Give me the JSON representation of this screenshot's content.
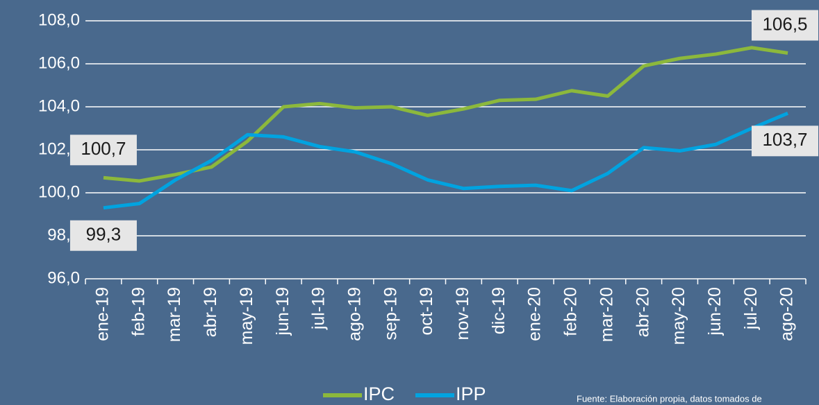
{
  "chart_data": {
    "type": "line",
    "categories": [
      "ene-19",
      "feb-19",
      "mar-19",
      "abr-19",
      "may-19",
      "jun-19",
      "jul-19",
      "ago-19",
      "sep-19",
      "oct-19",
      "nov-19",
      "dic-19",
      "ene-20",
      "feb-20",
      "mar-20",
      "abr-20",
      "may-20",
      "jun-20",
      "jul-20",
      "ago-20"
    ],
    "series": [
      {
        "name": "IPC",
        "color": "#8cb83c",
        "values": [
          100.7,
          100.55,
          100.85,
          101.2,
          102.4,
          104.0,
          104.15,
          103.95,
          104.0,
          103.6,
          103.9,
          104.3,
          104.35,
          104.75,
          104.5,
          105.9,
          106.25,
          106.45,
          106.75,
          106.5
        ],
        "value_labels": [
          "100,7",
          null,
          null,
          null,
          null,
          null,
          null,
          null,
          null,
          null,
          null,
          null,
          null,
          null,
          null,
          null,
          null,
          null,
          null,
          "106,5"
        ]
      },
      {
        "name": "IPP",
        "color": "#00a3e0",
        "values": [
          99.3,
          99.5,
          100.6,
          101.5,
          102.7,
          102.6,
          102.15,
          101.9,
          101.35,
          100.6,
          100.2,
          100.3,
          100.35,
          100.1,
          100.9,
          102.1,
          101.95,
          102.25,
          103.0,
          103.7
        ],
        "value_labels": [
          "99,3",
          null,
          null,
          null,
          null,
          null,
          null,
          null,
          null,
          null,
          null,
          null,
          null,
          null,
          null,
          null,
          null,
          null,
          null,
          "103,7"
        ]
      }
    ],
    "ylim": [
      96,
      108
    ],
    "yticks": [
      {
        "value": 96,
        "label": "96,0"
      },
      {
        "value": 98,
        "label": "98,0"
      },
      {
        "value": 100,
        "label": "100,0"
      },
      {
        "value": 102,
        "label": "102,0"
      },
      {
        "value": 104,
        "label": "104,0"
      },
      {
        "value": 106,
        "label": "106,0"
      },
      {
        "value": 108,
        "label": "108,0"
      }
    ],
    "grid": true,
    "legend": "bottom",
    "source": "Fuente: Elaboración propia, datos tomados de"
  }
}
